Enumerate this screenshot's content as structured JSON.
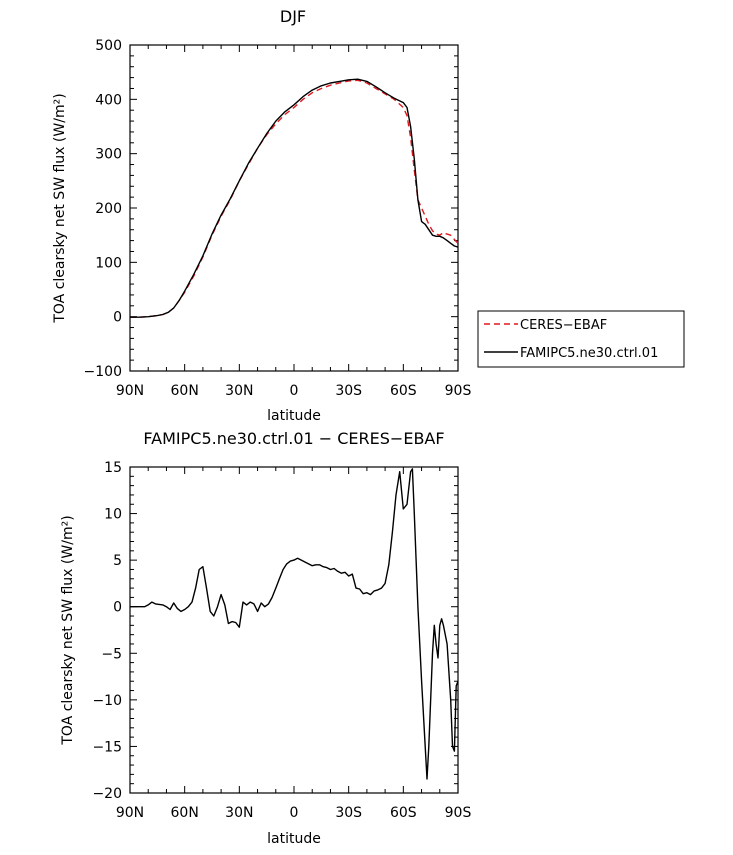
{
  "chart_data": [
    {
      "type": "line",
      "title": "DJF",
      "xlabel": "latitude",
      "ylabel": "TOA clearsky net SW flux (W/m²)",
      "xlim": [
        90,
        -90
      ],
      "ylim": [
        -100,
        500
      ],
      "x_tick_labels": [
        "90N",
        "60N",
        "30N",
        "0",
        "30S",
        "60S",
        "90S"
      ],
      "y_tick_labels": [
        "−100",
        "0",
        "100",
        "200",
        "300",
        "400",
        "500"
      ],
      "legend_position": "right",
      "series": [
        {
          "name": "CERES−EBAF",
          "color": "#e0191f",
          "dash": "dashed",
          "x": [
            90,
            85,
            80,
            75,
            72,
            69,
            66,
            63,
            60,
            55,
            50,
            45,
            40,
            35,
            30,
            25,
            20,
            15,
            10,
            5,
            0,
            -5,
            -10,
            -15,
            -20,
            -25,
            -30,
            -35,
            -40,
            -45,
            -50,
            -55,
            -60,
            -62,
            -64,
            -66,
            -68,
            -70,
            -72,
            -74,
            -76,
            -78,
            -80,
            -82,
            -84,
            -86,
            -88,
            -90
          ],
          "y": [
            -1,
            -1,
            0,
            2,
            4,
            8,
            16,
            30,
            45,
            75,
            110,
            150,
            185,
            215,
            250,
            280,
            310,
            335,
            355,
            372,
            385,
            400,
            412,
            420,
            426,
            430,
            434,
            435,
            430,
            420,
            410,
            400,
            385,
            370,
            330,
            270,
            215,
            200,
            185,
            170,
            158,
            152,
            150,
            155,
            152,
            150,
            142,
            135
          ]
        },
        {
          "name": "FAMIPC5.ne30.ctrl.01",
          "color": "#000000",
          "dash": "solid",
          "x": [
            90,
            85,
            80,
            75,
            72,
            69,
            66,
            63,
            60,
            55,
            50,
            45,
            40,
            35,
            30,
            25,
            20,
            15,
            10,
            5,
            0,
            -5,
            -10,
            -15,
            -20,
            -25,
            -30,
            -35,
            -40,
            -45,
            -50,
            -55,
            -60,
            -62,
            -64,
            -66,
            -68,
            -70,
            -72,
            -74,
            -76,
            -78,
            -80,
            -82,
            -84,
            -86,
            -88,
            -90
          ],
          "y": [
            -1,
            -1,
            0,
            2,
            4,
            8,
            16,
            30,
            47,
            78,
            112,
            152,
            187,
            217,
            250,
            282,
            310,
            337,
            360,
            377,
            390,
            405,
            417,
            425,
            430,
            433,
            436,
            437,
            433,
            423,
            412,
            402,
            394,
            385,
            350,
            290,
            215,
            175,
            170,
            160,
            150,
            148,
            148,
            145,
            140,
            135,
            130,
            128
          ]
        }
      ]
    },
    {
      "type": "line",
      "title": "FAMIPC5.ne30.ctrl.01 − CERES−EBAF",
      "xlabel": "latitude",
      "ylabel": "TOA clearsky net SW flux (W/m²)",
      "xlim": [
        90,
        -90
      ],
      "ylim": [
        -20,
        15
      ],
      "x_tick_labels": [
        "90N",
        "60N",
        "30N",
        "0",
        "30S",
        "60S",
        "90S"
      ],
      "y_tick_labels": [
        "−20",
        "−15",
        "−10",
        "−5",
        "0",
        "5",
        "10",
        "15"
      ],
      "series": [
        {
          "color": "#000000",
          "dash": "solid",
          "x": [
            90,
            82,
            80,
            78,
            76,
            72,
            70,
            68,
            66,
            64,
            62,
            60,
            58,
            56,
            54,
            52,
            50,
            48,
            46,
            44,
            42,
            40,
            38,
            36,
            34,
            32,
            30,
            28,
            26,
            24,
            22,
            20,
            18,
            16,
            14,
            12,
            10,
            8,
            6,
            4,
            2,
            0,
            -2,
            -4,
            -6,
            -8,
            -10,
            -12,
            -14,
            -16,
            -18,
            -20,
            -22,
            -24,
            -26,
            -28,
            -30,
            -32,
            -34,
            -36,
            -38,
            -40,
            -42,
            -44,
            -46,
            -48,
            -50,
            -52,
            -54,
            -56,
            -58,
            -60,
            -62,
            -64,
            -65,
            -66,
            -67,
            -68,
            -70,
            -72,
            -73,
            -74,
            -76,
            -77,
            -78,
            -79,
            -80,
            -81,
            -82,
            -84,
            -86,
            -87,
            -88,
            -89,
            -90
          ],
          "y": [
            0,
            0,
            0.2,
            0.5,
            0.3,
            0.2,
            0.0,
            -0.3,
            0.4,
            -0.2,
            -0.5,
            -0.3,
            0.0,
            0.5,
            2.0,
            4.0,
            4.3,
            2.0,
            -0.5,
            -1.0,
            0.0,
            1.3,
            0.2,
            -1.8,
            -1.6,
            -1.7,
            -2.2,
            0.5,
            0.2,
            0.5,
            0.3,
            -0.5,
            0.4,
            0.0,
            0.3,
            1.0,
            2.0,
            3.0,
            4.0,
            4.6,
            4.9,
            5.0,
            5.2,
            5.0,
            4.8,
            4.6,
            4.4,
            4.5,
            4.5,
            4.3,
            4.2,
            4.0,
            4.1,
            3.8,
            3.6,
            3.7,
            3.3,
            3.5,
            2.0,
            1.9,
            1.4,
            1.5,
            1.3,
            1.7,
            1.8,
            2.0,
            2.5,
            4.5,
            8.0,
            12.0,
            14.5,
            10.5,
            11.0,
            14.5,
            14.8,
            10.0,
            5.0,
            0.0,
            -8.0,
            -15.0,
            -18.5,
            -15.0,
            -5.0,
            -2.0,
            -4.0,
            -5.5,
            -2.0,
            -1.3,
            -2.0,
            -4.0,
            -10.0,
            -15.0,
            -15.5,
            -8.5,
            -8.0
          ]
        }
      ]
    }
  ]
}
